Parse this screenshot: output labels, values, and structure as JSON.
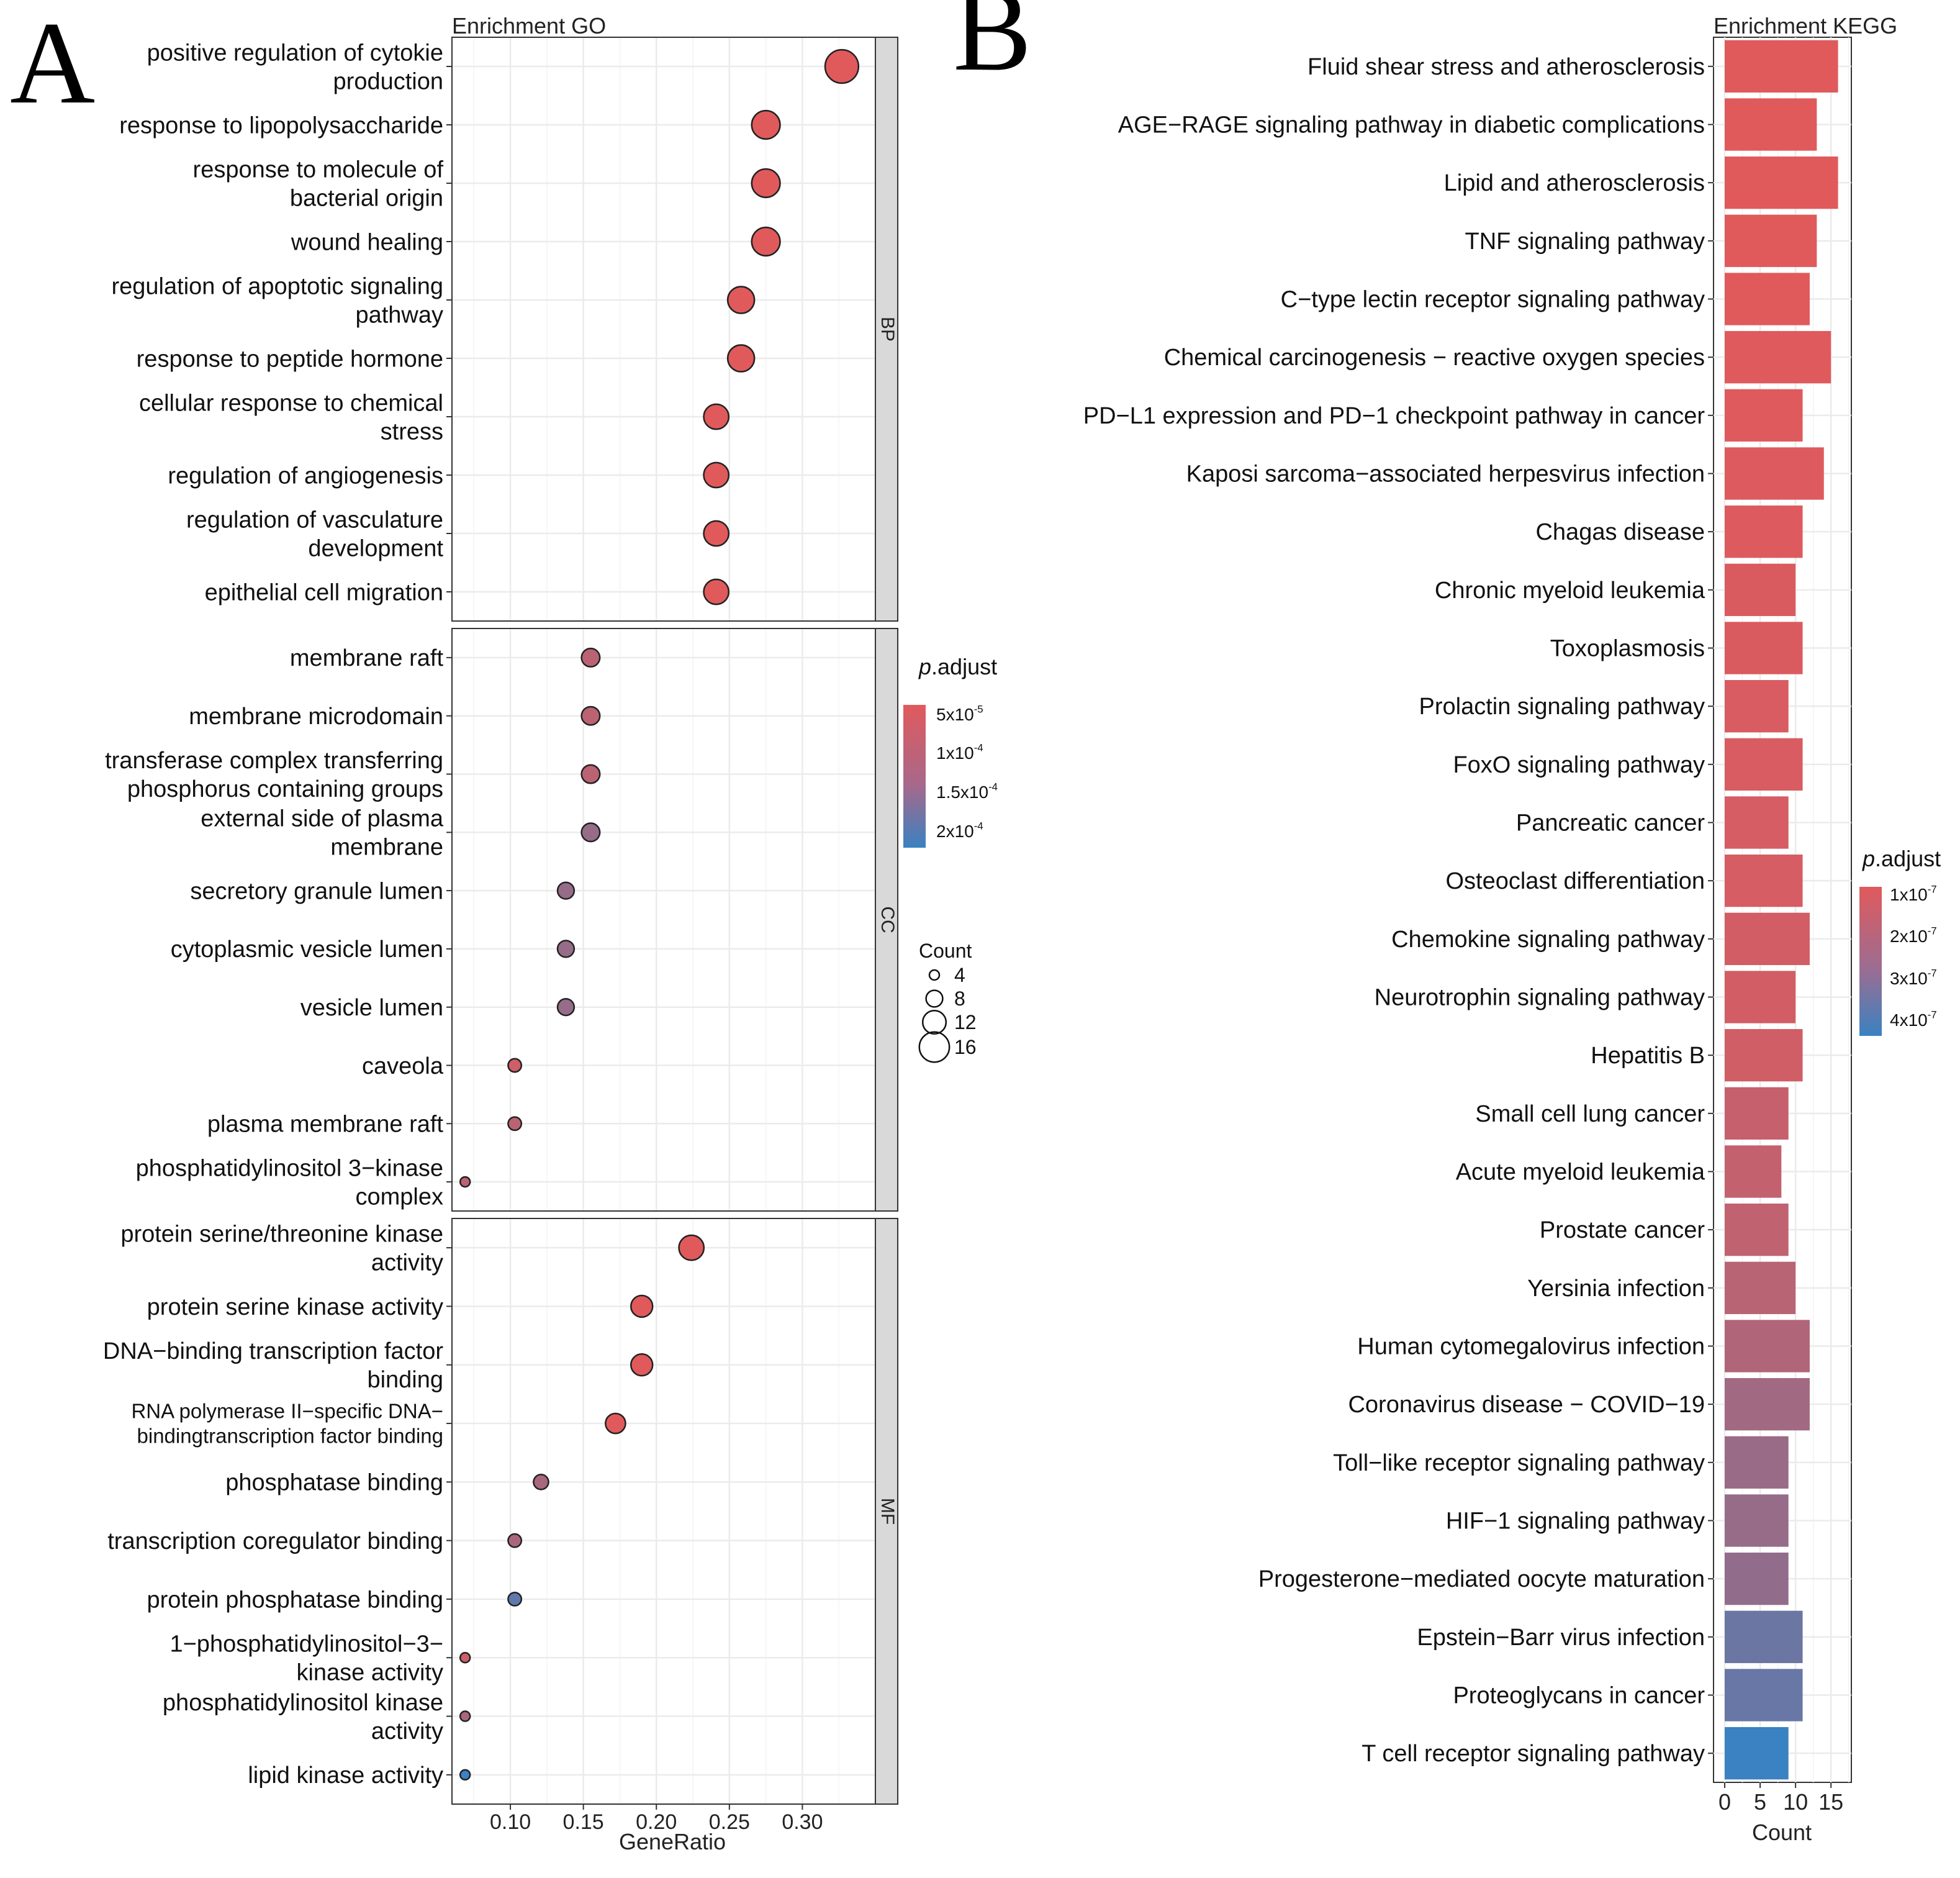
{
  "chart_data": [
    {
      "type": "scatter",
      "panel": "A",
      "title": "Enrichment GO",
      "xlabel": "GeneRatio",
      "xlim": [
        0.06,
        0.35
      ],
      "xticks": [
        "0.10",
        "0.15",
        "0.20",
        "0.25",
        "0.30"
      ],
      "xtick_values": [
        0.1,
        0.15,
        0.2,
        0.25,
        0.3
      ],
      "legend": {
        "color_title_italic": "p",
        "color_title_rest": ".adjust",
        "color_labels": [
          {
            "base": "5x10",
            "exp": "-5"
          },
          {
            "base": "1x10",
            "exp": "-4"
          },
          {
            "base": "1.5x10",
            "exp": "-4"
          },
          {
            "base": "2x10",
            "exp": "-4"
          }
        ],
        "size_title": "Count",
        "size_labels": [
          "4",
          "8",
          "12",
          "16"
        ],
        "size_values": [
          4,
          8,
          12,
          16
        ]
      },
      "facets": [
        {
          "label": "BP",
          "terms": [
            {
              "lines": [
                "positive regulation of cytokie",
                "production"
              ],
              "ratio": 0.327,
              "count": 18,
              "padj": 2e-05
            },
            {
              "lines": [
                "response to lipopolysaccharide"
              ],
              "ratio": 0.275,
              "count": 15,
              "padj": 2e-05
            },
            {
              "lines": [
                "response to molecule of",
                "bacterial origin"
              ],
              "ratio": 0.275,
              "count": 15,
              "padj": 2e-05
            },
            {
              "lines": [
                "wound healing"
              ],
              "ratio": 0.275,
              "count": 15,
              "padj": 2e-05
            },
            {
              "lines": [
                "regulation of apoptotic signaling",
                "pathway"
              ],
              "ratio": 0.258,
              "count": 14,
              "padj": 2e-05
            },
            {
              "lines": [
                "response to peptide hormone"
              ],
              "ratio": 0.258,
              "count": 14,
              "padj": 2e-05
            },
            {
              "lines": [
                "cellular response to chemical",
                "stress"
              ],
              "ratio": 0.241,
              "count": 13,
              "padj": 2e-05
            },
            {
              "lines": [
                "regulation of angiogenesis"
              ],
              "ratio": 0.241,
              "count": 13,
              "padj": 2e-05
            },
            {
              "lines": [
                "regulation of vasculature",
                "development"
              ],
              "ratio": 0.241,
              "count": 13,
              "padj": 2e-05
            },
            {
              "lines": [
                "epithelial cell migration"
              ],
              "ratio": 0.241,
              "count": 13,
              "padj": 2e-05
            }
          ]
        },
        {
          "label": "CC",
          "terms": [
            {
              "lines": [
                "membrane raft"
              ],
              "ratio": 0.155,
              "count": 9,
              "padj": 6e-05
            },
            {
              "lines": [
                "membrane microdomain"
              ],
              "ratio": 0.155,
              "count": 9,
              "padj": 6e-05
            },
            {
              "lines": [
                "transferase complex transferring",
                "phosphorus containing groups"
              ],
              "ratio": 0.155,
              "count": 9,
              "padj": 6e-05
            },
            {
              "lines": [
                "external side of plasma",
                "membrane"
              ],
              "ratio": 0.155,
              "count": 9,
              "padj": 0.0001
            },
            {
              "lines": [
                "secretory granule lumen"
              ],
              "ratio": 0.138,
              "count": 8,
              "padj": 0.0001
            },
            {
              "lines": [
                "cytoplasmic vesicle lumen"
              ],
              "ratio": 0.138,
              "count": 8,
              "padj": 0.0001
            },
            {
              "lines": [
                "vesicle lumen"
              ],
              "ratio": 0.138,
              "count": 8,
              "padj": 0.0001
            },
            {
              "lines": [
                "caveola"
              ],
              "ratio": 0.103,
              "count": 6,
              "padj": 4e-05
            },
            {
              "lines": [
                "plasma membrane raft"
              ],
              "ratio": 0.103,
              "count": 6,
              "padj": 6e-05
            },
            {
              "lines": [
                "phosphatidylinositol 3−kinase",
                "complex"
              ],
              "ratio": 0.069,
              "count": 4,
              "padj": 6e-05
            }
          ]
        },
        {
          "label": "MF",
          "terms": [
            {
              "lines": [
                "protein serine/threonine kinase",
                "activity"
              ],
              "ratio": 0.224,
              "count": 13,
              "padj": 2e-05
            },
            {
              "lines": [
                "protein serine kinase activity"
              ],
              "ratio": 0.19,
              "count": 11,
              "padj": 2e-05
            },
            {
              "lines": [
                "DNA−binding transcription factor",
                "binding"
              ],
              "ratio": 0.19,
              "count": 11,
              "padj": 2e-05
            },
            {
              "lines": [
                "RNA polymerase II−specific DNA−",
                "bindingtranscription factor binding"
              ],
              "ratio": 0.172,
              "count": 10,
              "padj": 2e-05,
              "small": true
            },
            {
              "lines": [
                "phosphatase binding"
              ],
              "ratio": 0.121,
              "count": 7,
              "padj": 8e-05
            },
            {
              "lines": [
                "transcription coregulator binding"
              ],
              "ratio": 0.103,
              "count": 6,
              "padj": 8e-05
            },
            {
              "lines": [
                "protein phosphatase binding"
              ],
              "ratio": 0.103,
              "count": 6,
              "padj": 0.00016
            },
            {
              "lines": [
                "1−phosphatidylinositol−3−",
                "kinase activity"
              ],
              "ratio": 0.069,
              "count": 4,
              "padj": 4e-05
            },
            {
              "lines": [
                "phosphatidylinositol kinase",
                "activity"
              ],
              "ratio": 0.069,
              "count": 4,
              "padj": 8e-05
            },
            {
              "lines": [
                "lipid kinase activity"
              ],
              "ratio": 0.069,
              "count": 4,
              "padj": 0.0002
            }
          ]
        }
      ]
    },
    {
      "type": "bar",
      "panel": "B",
      "orientation": "horizontal",
      "title": "Enrichment KEGG",
      "xlabel": "Count",
      "xlim": [
        0,
        17
      ],
      "xticks": [
        "0",
        "5",
        "10",
        "15"
      ],
      "xtick_values": [
        0,
        5,
        10,
        15
      ],
      "legend": {
        "color_title_italic": "p",
        "color_title_rest": ".adjust",
        "color_labels": [
          {
            "base": "1x10",
            "exp": "-7"
          },
          {
            "base": "2x10",
            "exp": "-7"
          },
          {
            "base": "3x10",
            "exp": "-7"
          },
          {
            "base": "4x10",
            "exp": "-7"
          }
        ]
      },
      "categories": [
        "Fluid shear stress and atherosclerosis",
        "AGE−RAGE signaling pathway in diabetic complications",
        "Lipid and atherosclerosis",
        "TNF signaling pathway",
        "C−type lectin receptor signaling pathway",
        "Chemical carcinogenesis − reactive oxygen species",
        "PD−L1 expression and PD−1 checkpoint pathway in cancer",
        "Kaposi sarcoma−associated herpesvirus infection",
        "Chagas disease",
        "Chronic myeloid leukemia",
        "Toxoplasmosis",
        "Prolactin signaling pathway",
        "FoxO signaling pathway",
        "Pancreatic cancer",
        "Osteoclast differentiation",
        "Chemokine signaling pathway",
        "Neurotrophin signaling pathway",
        "Hepatitis B",
        "Small cell lung cancer",
        "Acute myeloid leukemia",
        "Prostate cancer",
        "Yersinia infection",
        "Human cytomegalovirus infection",
        "Coronavirus disease − COVID−19",
        "Toll−like receptor signaling pathway",
        "HIF−1 signaling pathway",
        "Progesterone−mediated oocyte maturation",
        "Epstein−Barr virus infection",
        "Proteoglycans in cancer",
        "T cell receptor signaling pathway"
      ],
      "values": [
        16,
        13,
        16,
        13,
        12,
        15,
        11,
        14,
        11,
        10,
        11,
        9,
        11,
        9,
        11,
        12,
        10,
        11,
        9,
        8,
        9,
        10,
        12,
        12,
        9,
        9,
        9,
        11,
        11,
        9
      ],
      "padj": [
        1e-09,
        2e-09,
        2e-09,
        3e-09,
        5e-09,
        8e-09,
        1e-08,
        2e-08,
        2e-08,
        3e-08,
        3e-08,
        4e-08,
        4e-08,
        5e-08,
        5e-08,
        6e-08,
        6e-08,
        7e-08,
        1e-07,
        1.1e-07,
        1.2e-07,
        1.4e-07,
        1.6e-07,
        2e-07,
        2.2e-07,
        2.3e-07,
        2.4e-07,
        3.3e-07,
        3.4e-07,
        4.4e-07
      ]
    }
  ],
  "colors": {
    "low_padj": "#e05a5c",
    "high_padj": "#3a82c1",
    "panel_border": "#333333",
    "grid": "#ebebeb",
    "strip": "#d9d9d9"
  },
  "panel_letters": {
    "a": "A",
    "b": "B"
  }
}
